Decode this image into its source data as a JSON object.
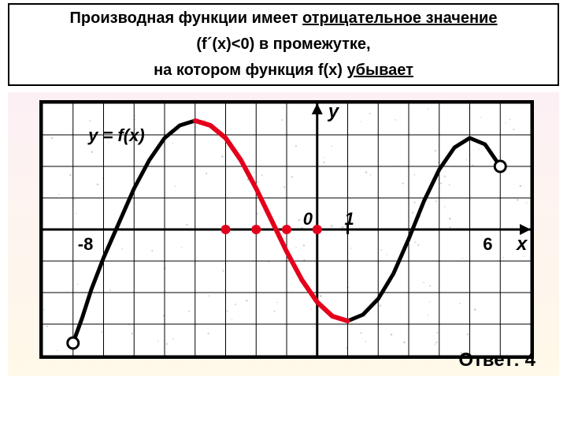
{
  "header": {
    "line1_prefix": "Производная функции имеет ",
    "line1_underlined": "отрицательное значение",
    "line2": "(f´(x)<0) в промежутке,",
    "line3_prefix": "на котором функция f(x) ",
    "line3_underlined": "убывает"
  },
  "chart": {
    "type": "line",
    "xlim": [
      -9,
      7
    ],
    "ylim": [
      -4,
      4
    ],
    "grid_step": 1,
    "origin_label": "0",
    "one_label": "1",
    "x_axis_label": "x",
    "y_axis_label": "y",
    "function_label": "y = f(x)",
    "left_label": "-8",
    "right_label": "6",
    "curve_points": [
      [
        -8.0,
        -3.6
      ],
      [
        -7.7,
        -2.8
      ],
      [
        -7.4,
        -1.9
      ],
      [
        -7.0,
        -0.9
      ],
      [
        -6.5,
        0.2
      ],
      [
        -6.0,
        1.3
      ],
      [
        -5.5,
        2.2
      ],
      [
        -5.0,
        2.9
      ],
      [
        -4.5,
        3.3
      ],
      [
        -4.0,
        3.45
      ],
      [
        -3.5,
        3.3
      ],
      [
        -3.0,
        2.9
      ],
      [
        -2.5,
        2.2
      ],
      [
        -2.0,
        1.3
      ],
      [
        -1.5,
        0.3
      ],
      [
        -1.0,
        -0.7
      ],
      [
        -0.5,
        -1.6
      ],
      [
        0.0,
        -2.3
      ],
      [
        0.5,
        -2.75
      ],
      [
        1.0,
        -2.9
      ],
      [
        1.5,
        -2.7
      ],
      [
        2.0,
        -2.2
      ],
      [
        2.5,
        -1.4
      ],
      [
        3.0,
        -0.3
      ],
      [
        3.5,
        0.9
      ],
      [
        4.0,
        1.9
      ],
      [
        4.5,
        2.6
      ],
      [
        5.0,
        2.9
      ],
      [
        5.5,
        2.7
      ],
      [
        6.0,
        2.0
      ]
    ],
    "highlight_range": [
      -4.0,
      1.0
    ],
    "colors": {
      "grid": "#000000",
      "axis": "#000000",
      "curve": "#000000",
      "highlight": "#e4001b",
      "marker": "#e4001b",
      "endpoint_fill": "#ffffff",
      "background": "#ffffff"
    },
    "line_width": {
      "grid": 1,
      "curve": 5,
      "highlight": 6,
      "axis": 3
    },
    "int_markers_x": [
      -3,
      -2,
      -1,
      0
    ],
    "marker_radius": 6,
    "endpoint_radius": 7
  },
  "answer": {
    "label": "Ответ: 4"
  }
}
